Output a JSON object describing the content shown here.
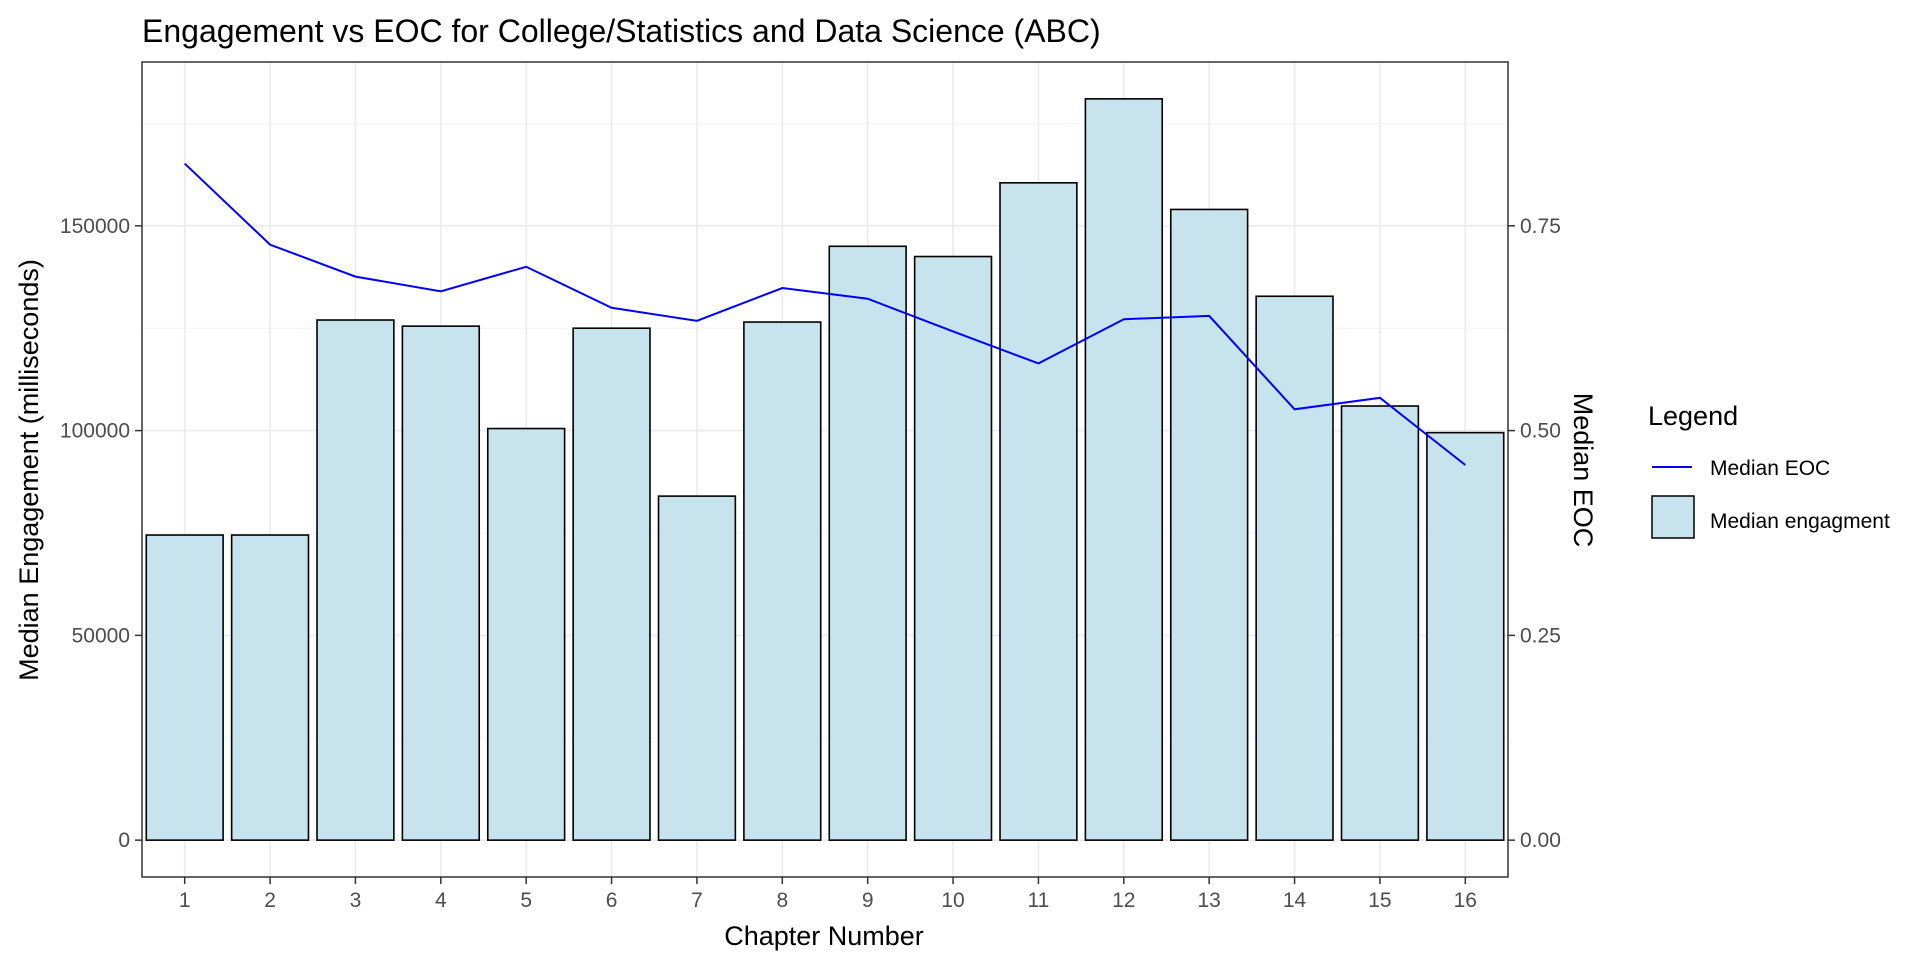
{
  "chart_data": {
    "type": "bar",
    "title": "Engagement vs EOC for College/Statistics and Data Science (ABC)",
    "xlabel": "Chapter Number",
    "ylabel": "Median Engagement (milliseconds)",
    "y2label": "Median EOC",
    "categories": [
      "1",
      "2",
      "3",
      "4",
      "5",
      "6",
      "7",
      "8",
      "9",
      "10",
      "11",
      "12",
      "13",
      "14",
      "15",
      "16"
    ],
    "series": [
      {
        "name": "Median engagment",
        "type": "bar",
        "axis": "left",
        "values": [
          74500,
          74500,
          127000,
          125500,
          100500,
          125000,
          84000,
          126500,
          145000,
          142500,
          160500,
          181000,
          154000,
          132800,
          106000,
          99500
        ]
      },
      {
        "name": "Median EOC",
        "type": "line",
        "axis": "right",
        "values": [
          0.826,
          0.727,
          0.688,
          0.67,
          0.7,
          0.65,
          0.634,
          0.674,
          0.661,
          0.621,
          0.582,
          0.636,
          0.64,
          0.526,
          0.54,
          0.458
        ]
      }
    ],
    "yticks": [
      0,
      50000,
      100000,
      150000
    ],
    "ytick_labels": [
      "0",
      "50000",
      "100000",
      "150000"
    ],
    "y2ticks": [
      0,
      0.25,
      0.5,
      0.75
    ],
    "y2tick_labels": [
      "0.00",
      "0.25",
      "0.50",
      "0.75"
    ],
    "ylim": [
      -9000,
      190000
    ],
    "y2lim": [
      -0.045,
      0.95
    ],
    "grid": true,
    "legend": {
      "title": "Legend",
      "position": "right",
      "items": [
        {
          "label": "Median EOC",
          "kind": "line"
        },
        {
          "label": "Median engagment",
          "kind": "bar"
        }
      ]
    },
    "colors": {
      "bar_fill": "#c7e4ee",
      "bar_stroke": "#000000",
      "line": "#0000ff",
      "grid": "#ebebeb",
      "panel_border": "#333333"
    }
  }
}
